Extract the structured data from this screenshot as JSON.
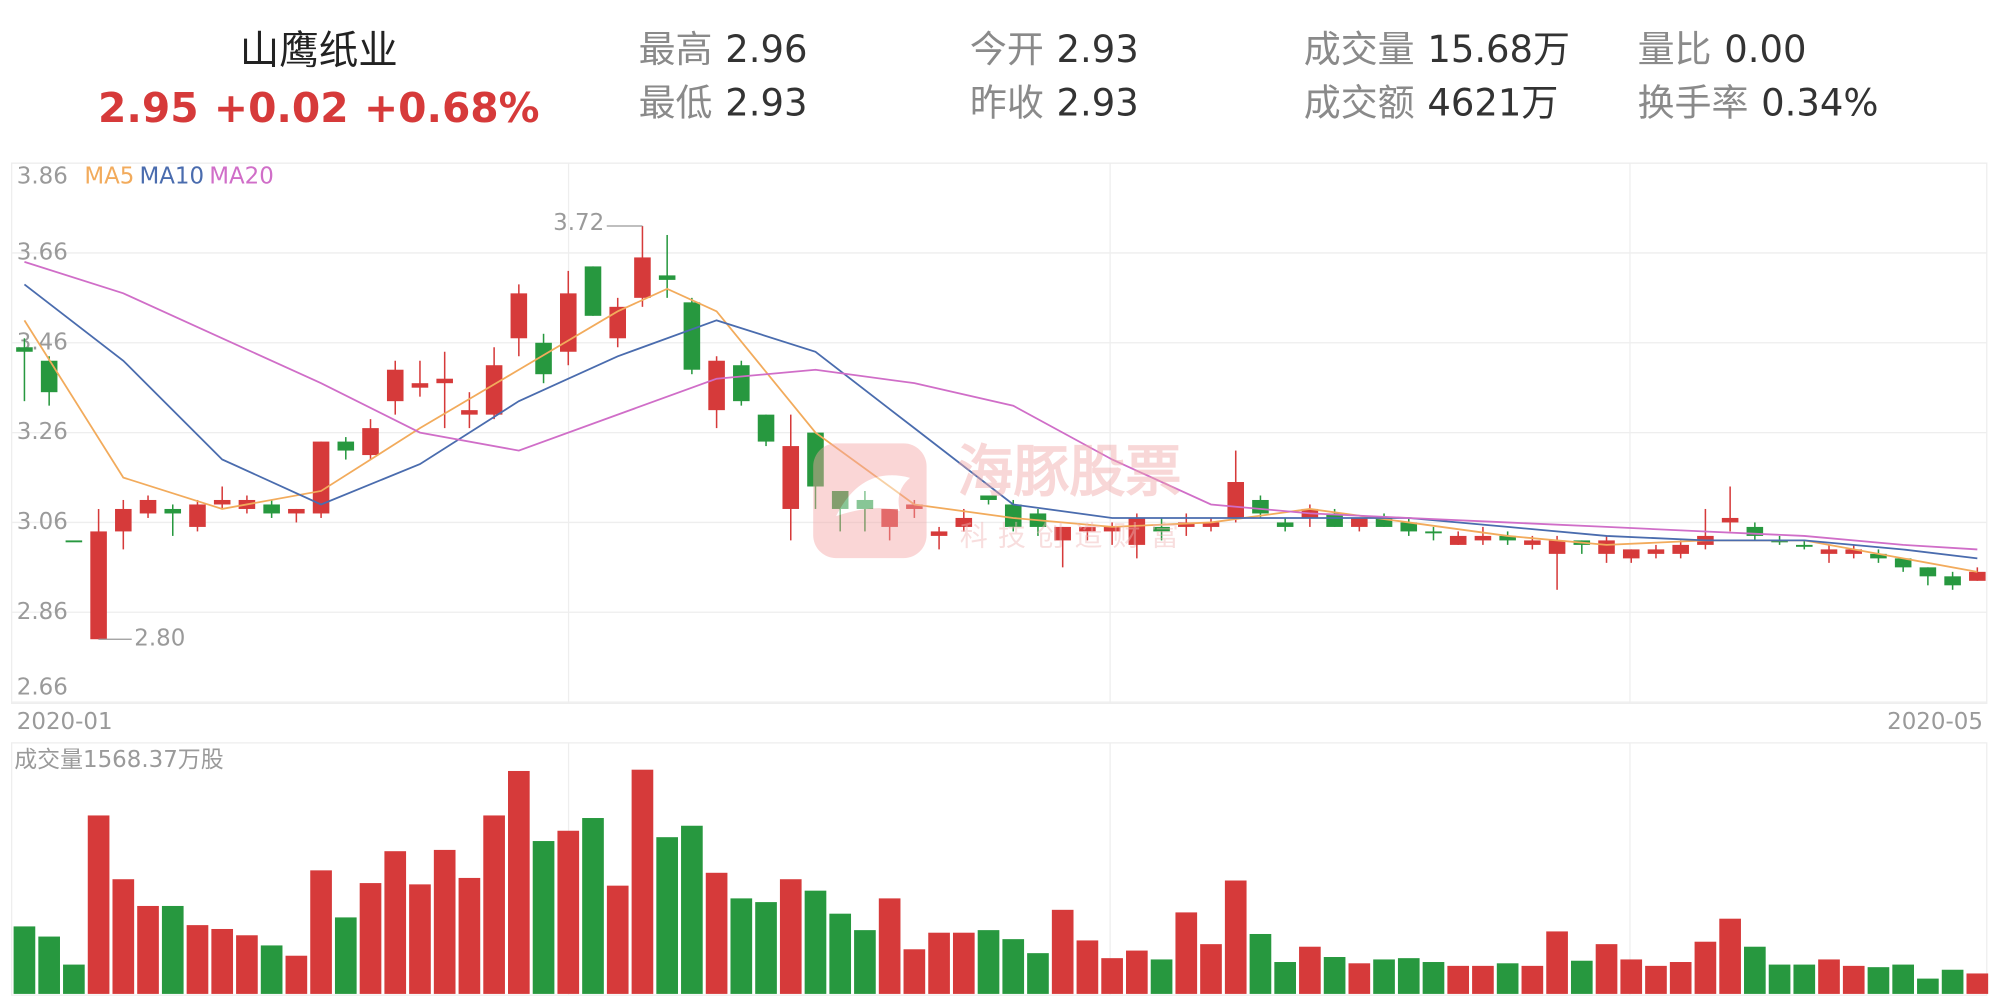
{
  "header": {
    "name": "山鹰纸业",
    "price": "2.95",
    "change": "+0.02",
    "change_pct": "+0.68%",
    "stats": [
      {
        "label": "最高",
        "value": "2.96"
      },
      {
        "label": "最低",
        "value": "2.93"
      },
      {
        "label": "今开",
        "value": "2.93"
      },
      {
        "label": "昨收",
        "value": "2.93"
      },
      {
        "label": "成交量",
        "value": "15.68万"
      },
      {
        "label": "成交额",
        "value": "4621万"
      },
      {
        "label": "量比",
        "value": "0.00"
      },
      {
        "label": "换手率",
        "value": "0.34%"
      }
    ]
  },
  "watermark": {
    "title": "海豚股票",
    "subtitle": "科技创造财富"
  },
  "chart_data": {
    "type": "candlestick",
    "up_color": "#d63a3a",
    "down_color": "#27983f",
    "ylim": [
      2.66,
      3.86
    ],
    "yticks": [
      2.66,
      2.86,
      3.06,
      3.26,
      3.46,
      3.66,
      3.86
    ],
    "grid": true,
    "x_labels": [
      "2020-01",
      "2020-05"
    ],
    "open": [
      3.45,
      3.42,
      3.02,
      2.8,
      3.04,
      3.08,
      3.09,
      3.05,
      3.1,
      3.09,
      3.1,
      3.08,
      3.08,
      3.24,
      3.21,
      3.33,
      3.36,
      3.37,
      3.3,
      3.3,
      3.47,
      3.46,
      3.44,
      3.63,
      3.47,
      3.56,
      3.61,
      3.55,
      3.31,
      3.41,
      3.3,
      3.09,
      3.26,
      3.13,
      3.11,
      3.05,
      3.09,
      3.03,
      3.05,
      3.12,
      3.1,
      3.08,
      3.02,
      3.04,
      3.04,
      3.01,
      3.05,
      3.05,
      3.05,
      3.07,
      3.11,
      3.06,
      3.07,
      3.08,
      3.05,
      3.07,
      3.06,
      3.04,
      3.01,
      3.02,
      3.03,
      3.01,
      2.99,
      3.02,
      2.99,
      2.98,
      2.99,
      2.99,
      3.01,
      3.06,
      3.05,
      3.02,
      3.01,
      2.99,
      2.99,
      2.99,
      2.98,
      2.96,
      2.94,
      2.93
    ],
    "high": [
      3.47,
      3.43,
      3.02,
      3.09,
      3.11,
      3.12,
      3.1,
      3.11,
      3.14,
      3.12,
      3.11,
      3.09,
      3.24,
      3.25,
      3.29,
      3.42,
      3.42,
      3.44,
      3.35,
      3.45,
      3.59,
      3.48,
      3.62,
      3.63,
      3.56,
      3.72,
      3.7,
      3.56,
      3.43,
      3.42,
      3.3,
      3.3,
      3.26,
      3.13,
      3.13,
      3.09,
      3.11,
      3.05,
      3.09,
      3.12,
      3.11,
      3.09,
      3.05,
      3.05,
      3.06,
      3.08,
      3.07,
      3.08,
      3.07,
      3.22,
      3.12,
      3.07,
      3.1,
      3.09,
      3.07,
      3.08,
      3.07,
      3.05,
      3.04,
      3.05,
      3.04,
      3.03,
      3.03,
      3.02,
      3.03,
      3.0,
      3.01,
      3.02,
      3.09,
      3.14,
      3.06,
      3.03,
      3.02,
      3.01,
      3.01,
      3.0,
      2.98,
      2.96,
      2.95,
      2.96
    ],
    "low": [
      3.33,
      3.32,
      3.02,
      2.8,
      3.0,
      3.07,
      3.03,
      3.04,
      3.09,
      3.08,
      3.07,
      3.06,
      3.07,
      3.2,
      3.2,
      3.3,
      3.34,
      3.27,
      3.27,
      3.29,
      3.43,
      3.37,
      3.41,
      3.52,
      3.45,
      3.54,
      3.56,
      3.39,
      3.27,
      3.32,
      3.23,
      3.02,
      3.09,
      3.04,
      3.04,
      3.02,
      3.07,
      3.0,
      3.04,
      3.1,
      3.04,
      3.03,
      2.96,
      3.02,
      3.01,
      2.98,
      3.02,
      3.03,
      3.04,
      3.06,
      3.07,
      3.04,
      3.05,
      3.05,
      3.04,
      3.05,
      3.03,
      3.02,
      3.01,
      3.01,
      3.01,
      3.0,
      2.91,
      2.99,
      2.97,
      2.97,
      2.98,
      2.98,
      3.0,
      3.04,
      3.02,
      3.01,
      3.0,
      2.97,
      2.98,
      2.97,
      2.95,
      2.92,
      2.91,
      2.93
    ],
    "close": [
      3.44,
      3.35,
      3.02,
      3.04,
      3.09,
      3.11,
      3.08,
      3.1,
      3.11,
      3.11,
      3.08,
      3.09,
      3.24,
      3.22,
      3.27,
      3.4,
      3.37,
      3.38,
      3.31,
      3.41,
      3.57,
      3.39,
      3.57,
      3.52,
      3.54,
      3.65,
      3.6,
      3.4,
      3.42,
      3.33,
      3.24,
      3.23,
      3.14,
      3.09,
      3.09,
      3.09,
      3.1,
      3.04,
      3.07,
      3.11,
      3.05,
      3.05,
      3.05,
      3.05,
      3.05,
      3.07,
      3.04,
      3.06,
      3.06,
      3.15,
      3.08,
      3.05,
      3.09,
      3.05,
      3.07,
      3.05,
      3.04,
      3.04,
      3.03,
      3.03,
      3.02,
      3.02,
      3.02,
      3.01,
      3.02,
      3.0,
      3.0,
      3.01,
      3.03,
      3.07,
      3.03,
      3.02,
      3.01,
      3.0,
      3.0,
      2.98,
      2.96,
      2.94,
      2.92,
      2.95
    ],
    "high_label": 3.72,
    "low_label": {
      "value": 2.8,
      "label": "2.80"
    },
    "ma_series": [
      {
        "name": "MA5",
        "color": "#f2ab5c",
        "x": [
          0,
          4,
          8,
          12,
          16,
          20,
          24,
          26,
          28,
          32,
          36,
          40,
          44,
          48,
          52,
          56,
          60,
          64,
          68,
          72,
          76,
          79
        ],
        "values": [
          3.51,
          3.16,
          3.09,
          3.13,
          3.27,
          3.4,
          3.53,
          3.58,
          3.53,
          3.26,
          3.1,
          3.07,
          3.05,
          3.06,
          3.09,
          3.06,
          3.03,
          3.01,
          3.02,
          3.02,
          2.98,
          2.95
        ]
      },
      {
        "name": "MA10",
        "color": "#4a6cae",
        "x": [
          0,
          4,
          8,
          12,
          16,
          20,
          24,
          28,
          32,
          36,
          40,
          44,
          48,
          52,
          56,
          60,
          64,
          68,
          72,
          76,
          79
        ],
        "values": [
          3.59,
          3.42,
          3.2,
          3.1,
          3.19,
          3.33,
          3.43,
          3.51,
          3.44,
          3.27,
          3.1,
          3.07,
          3.07,
          3.07,
          3.07,
          3.05,
          3.03,
          3.02,
          3.02,
          3.0,
          2.98
        ]
      },
      {
        "name": "MA20",
        "color": "#d06ec8",
        "x": [
          0,
          4,
          8,
          12,
          16,
          20,
          24,
          28,
          32,
          36,
          40,
          44,
          48,
          52,
          56,
          60,
          64,
          68,
          72,
          76,
          79
        ],
        "values": [
          3.64,
          3.57,
          3.47,
          3.37,
          3.26,
          3.22,
          3.3,
          3.38,
          3.4,
          3.37,
          3.32,
          3.2,
          3.1,
          3.08,
          3.07,
          3.06,
          3.05,
          3.04,
          3.03,
          3.01,
          3.0
        ]
      }
    ],
    "volume": {
      "title": "成交量1568.37万股",
      "ylim": [
        0,
        1568.37
      ],
      "values": [
        472,
        401,
        205,
        1248,
        802,
        615,
        615,
        481,
        454,
        410,
        339,
        267,
        864,
        535,
        775,
        998,
        766,
        1007,
        811,
        1248,
        1559,
        1069,
        1141,
        1230,
        757,
        1568,
        1096,
        1176,
        847,
        668,
        642,
        802,
        722,
        561,
        446,
        668,
        312,
        428,
        428,
        446,
        383,
        285,
        588,
        374,
        250,
        303,
        241,
        570,
        348,
        793,
        419,
        223,
        330,
        258,
        214,
        241,
        250,
        223,
        196,
        196,
        214,
        196,
        437,
        232,
        348,
        241,
        196,
        223,
        365,
        526,
        330,
        205,
        205,
        241,
        196,
        187,
        205,
        107,
        169,
        143
      ]
    }
  }
}
